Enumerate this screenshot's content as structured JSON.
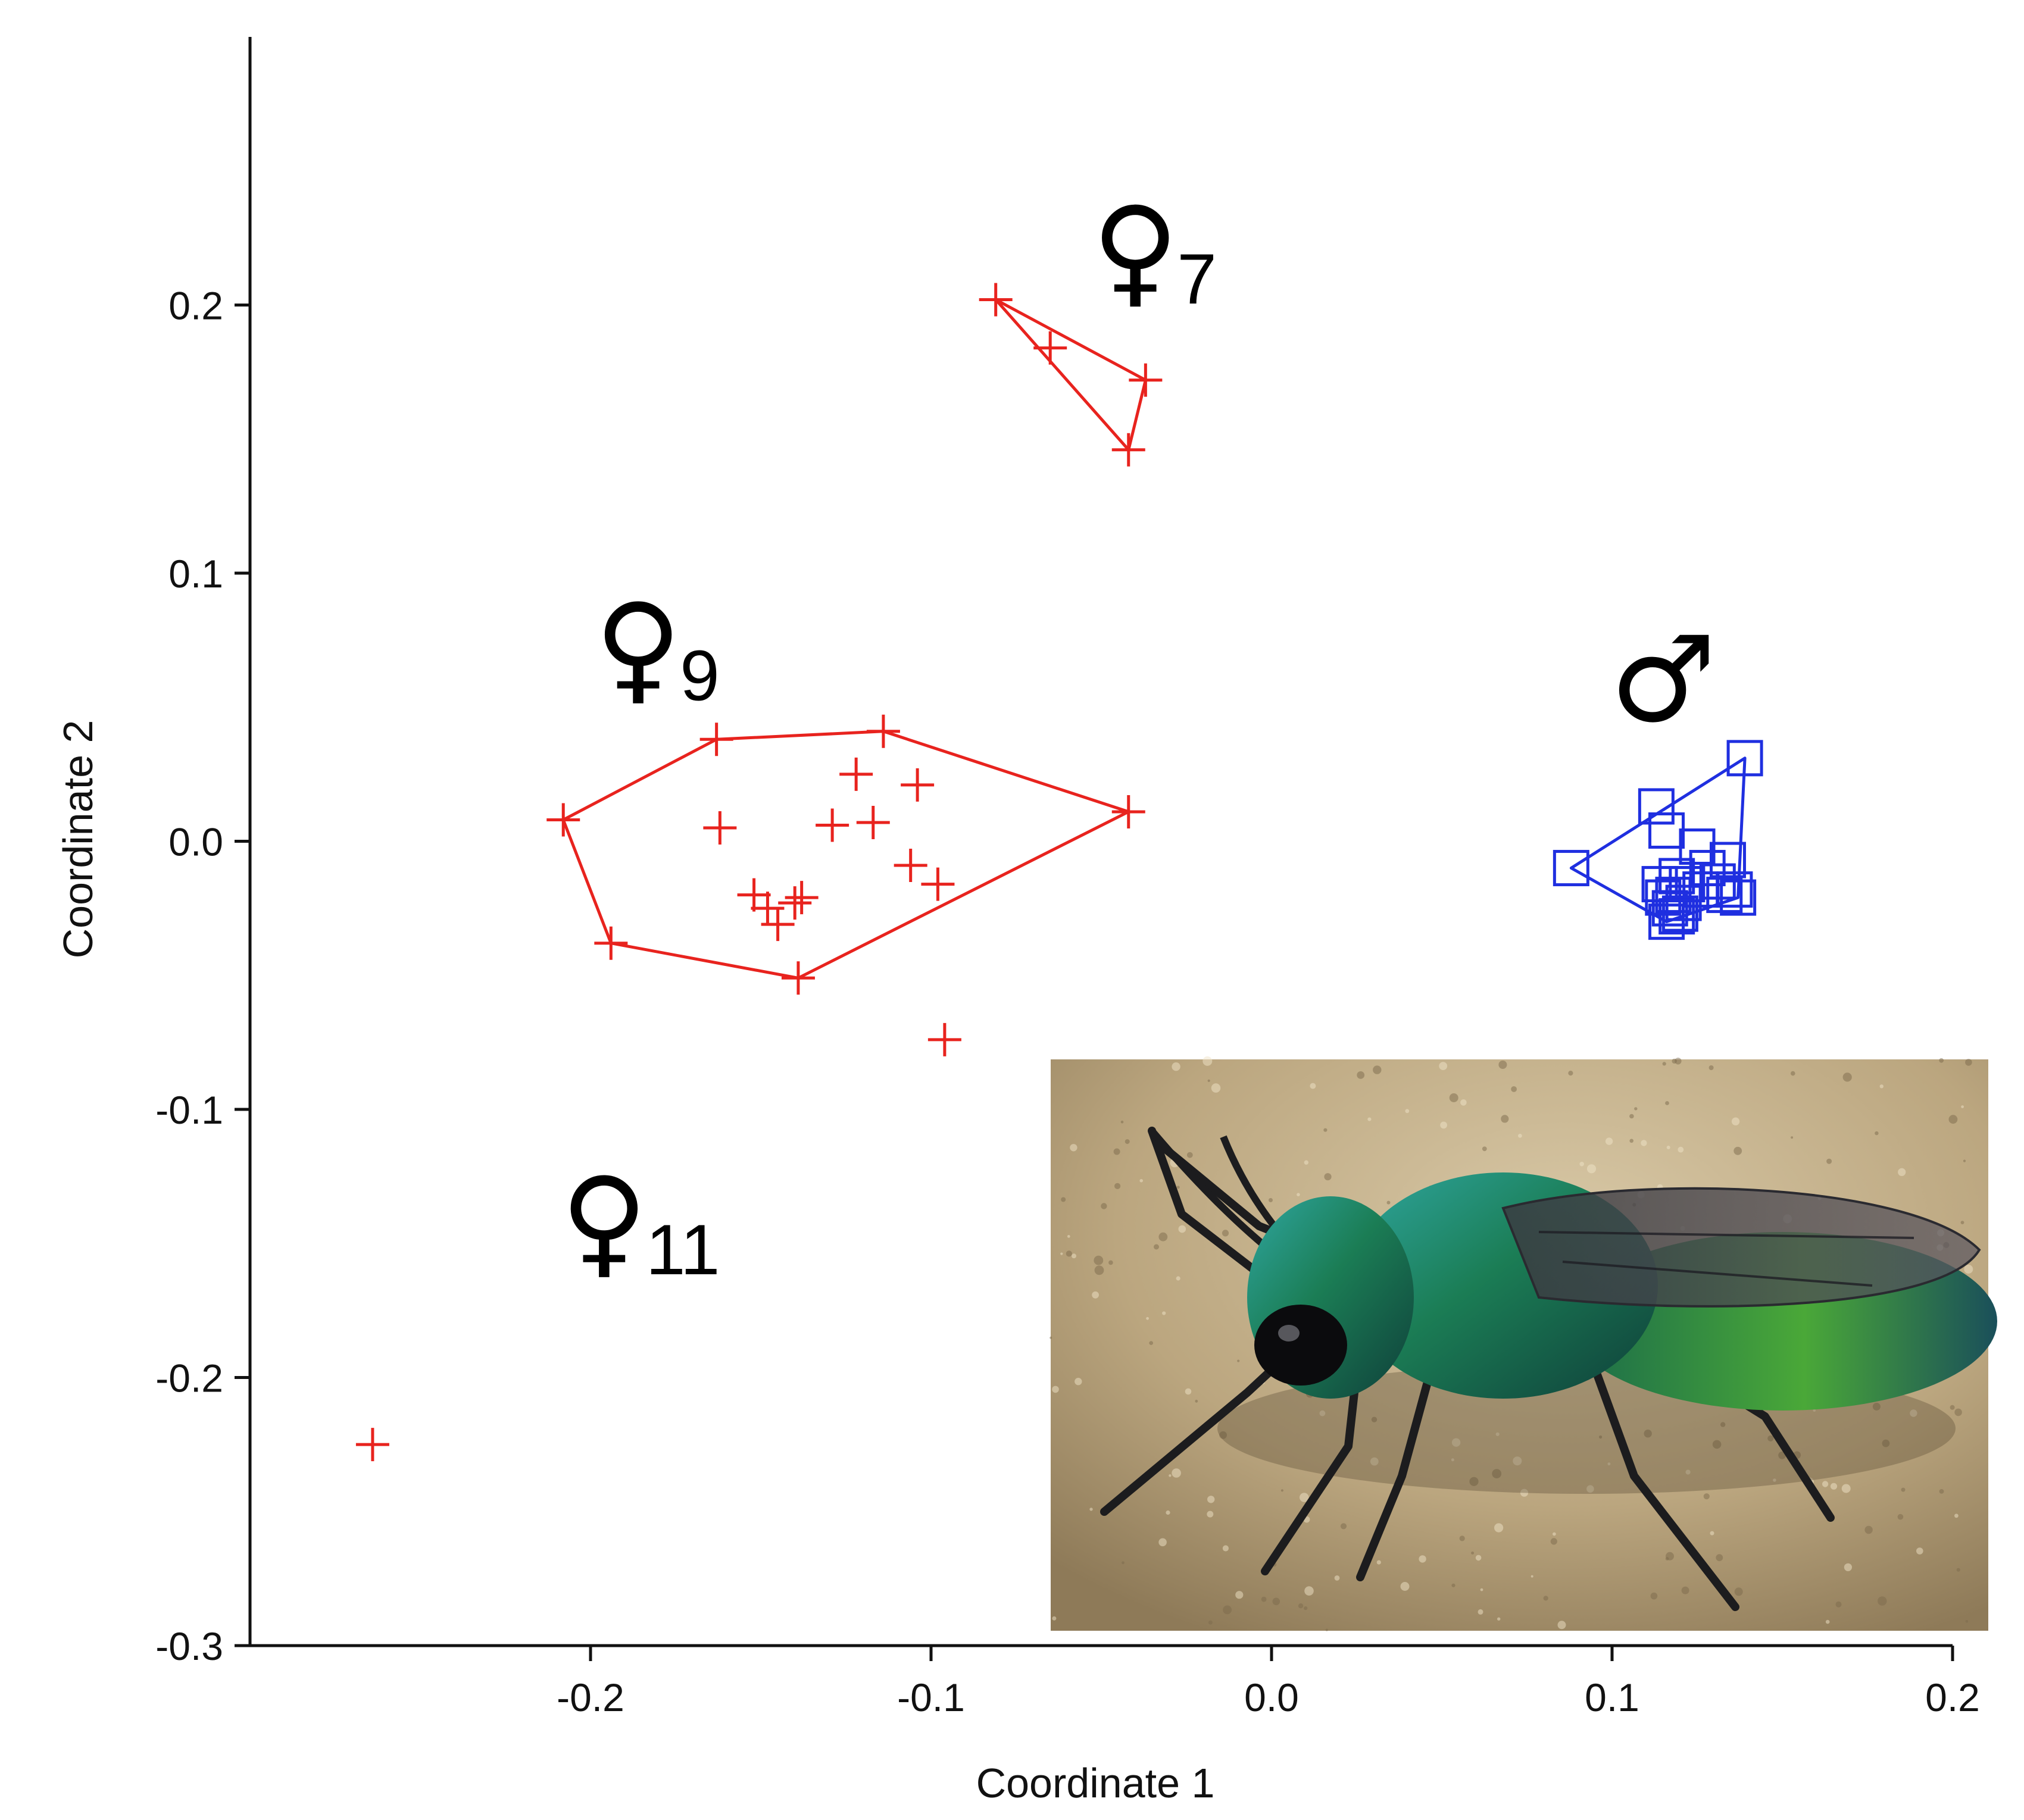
{
  "chart_data": {
    "type": "scatter",
    "xlabel": "Coordinate 1",
    "ylabel": "Coordinate 2",
    "xlim": [
      -0.3,
      0.2
    ],
    "ylim": [
      -0.3,
      0.3
    ],
    "x_ticks": [
      -0.2,
      -0.1,
      0.0,
      0.1,
      0.2
    ],
    "x_tick_labels": [
      "-0.2",
      "-0.1",
      "0.0",
      "0.1",
      "0.2"
    ],
    "y_ticks": [
      -0.3,
      -0.2,
      -0.1,
      0.0,
      0.1,
      0.2
    ],
    "y_tick_labels": [
      "-0.3",
      "-0.2",
      "-0.1",
      "0.0",
      "0.1",
      "0.2"
    ],
    "grid": false,
    "legend": "none",
    "annotations": [
      {
        "symbol": "♀",
        "subscript": "7",
        "x": -0.04,
        "y": 0.205
      },
      {
        "symbol": "♀",
        "subscript": "9",
        "x": -0.186,
        "y": 0.057
      },
      {
        "symbol": "♀",
        "subscript": "11",
        "x": -0.196,
        "y": -0.157
      },
      {
        "symbol": "♂",
        "subscript": "",
        "x": 0.115,
        "y": 0.045
      }
    ],
    "series": [
      {
        "marker": "plus",
        "color": "#e8231e",
        "points": [
          [
            -0.081,
            0.202
          ],
          [
            -0.065,
            0.184
          ],
          [
            -0.037,
            0.172
          ],
          [
            -0.042,
            0.146
          ],
          [
            -0.208,
            0.008
          ],
          [
            -0.163,
            0.038
          ],
          [
            -0.114,
            0.041
          ],
          [
            -0.042,
            0.011
          ],
          [
            -0.139,
            -0.051
          ],
          [
            -0.194,
            -0.038
          ],
          [
            -0.162,
            0.005
          ],
          [
            -0.122,
            0.025
          ],
          [
            -0.104,
            0.021
          ],
          [
            -0.129,
            0.006
          ],
          [
            -0.117,
            0.007
          ],
          [
            -0.106,
            -0.009
          ],
          [
            -0.098,
            -0.016
          ],
          [
            -0.152,
            -0.02
          ],
          [
            -0.148,
            -0.025
          ],
          [
            -0.145,
            -0.031
          ],
          [
            -0.14,
            -0.023
          ],
          [
            -0.138,
            -0.021
          ],
          [
            -0.096,
            -0.074
          ],
          [
            -0.264,
            -0.225
          ]
        ],
        "hulls": [
          [
            [
              -0.081,
              0.202
            ],
            [
              -0.037,
              0.172
            ],
            [
              -0.042,
              0.146
            ]
          ],
          [
            [
              -0.208,
              0.008
            ],
            [
              -0.163,
              0.038
            ],
            [
              -0.114,
              0.041
            ],
            [
              -0.042,
              0.011
            ],
            [
              -0.139,
              -0.051
            ],
            [
              -0.194,
              -0.038
            ]
          ]
        ]
      },
      {
        "marker": "square",
        "color": "#1f2fe0",
        "points": [
          [
            0.139,
            0.031
          ],
          [
            0.088,
            -0.01
          ],
          [
            0.113,
            0.013
          ],
          [
            0.116,
            0.004
          ],
          [
            0.125,
            -0.002
          ],
          [
            0.134,
            -0.007
          ],
          [
            0.128,
            -0.01
          ],
          [
            0.119,
            -0.013
          ],
          [
            0.122,
            -0.016
          ],
          [
            0.131,
            -0.015
          ],
          [
            0.136,
            -0.018
          ],
          [
            0.114,
            -0.016
          ],
          [
            0.118,
            -0.02
          ],
          [
            0.126,
            -0.018
          ],
          [
            0.133,
            -0.02
          ],
          [
            0.137,
            -0.021
          ],
          [
            0.121,
            -0.023
          ],
          [
            0.115,
            -0.021
          ],
          [
            0.117,
            -0.025
          ],
          [
            0.119,
            -0.028
          ],
          [
            0.116,
            -0.03
          ],
          [
            0.12,
            -0.027
          ]
        ],
        "hulls": [
          [
            [
              0.139,
              0.031
            ],
            [
              0.088,
              -0.01
            ],
            [
              0.116,
              -0.03
            ],
            [
              0.137,
              -0.021
            ]
          ]
        ]
      }
    ],
    "inset_photo": "iridescent-green-wasp-on-sand"
  }
}
